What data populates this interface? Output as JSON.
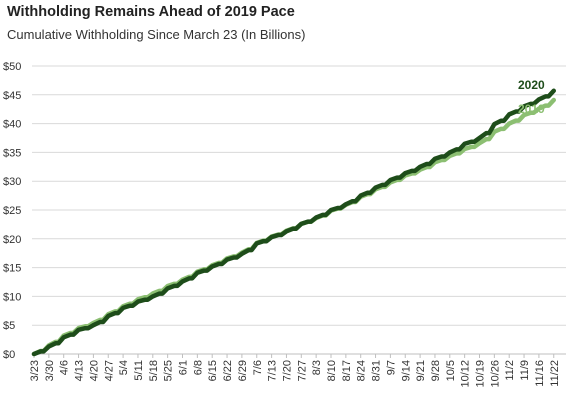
{
  "title": "Withholding Remains Ahead of 2019 Pace",
  "subtitle": "Cumulative Withholding Since March 23 (In Billions)",
  "chart_data": {
    "type": "line",
    "title": "Withholding Remains Ahead of 2019 Pace",
    "subtitle": "Cumulative Withholding Since March 23 (In Billions)",
    "xlabel": "",
    "ylabel": "",
    "ylim": [
      0,
      50
    ],
    "y_ticks": [
      "$0",
      "$5",
      "$10",
      "$15",
      "$20",
      "$25",
      "$30",
      "$35",
      "$40",
      "$45",
      "$50"
    ],
    "grid": true,
    "legend": "direct labels at right end of lines",
    "categories": [
      "3/23",
      "3/30",
      "4/6",
      "4/13",
      "4/20",
      "4/27",
      "5/4",
      "5/11",
      "5/18",
      "5/25",
      "6/1",
      "6/8",
      "6/15",
      "6/22",
      "6/29",
      "7/6",
      "7/13",
      "7/20",
      "7/27",
      "8/3",
      "8/10",
      "8/17",
      "8/24",
      "8/31",
      "9/7",
      "9/14",
      "9/21",
      "9/28",
      "10/5",
      "10/12",
      "10/19",
      "10/26",
      "11/2",
      "11/9",
      "11/16",
      "11/22"
    ],
    "series": [
      {
        "name": "2020",
        "color": "#1e4d1a",
        "values": [
          0,
          1.3,
          2.9,
          4.2,
          5.0,
          6.6,
          8.0,
          9.1,
          10.0,
          11.4,
          12.6,
          14.1,
          15.2,
          16.4,
          17.4,
          19.2,
          20.3,
          21.3,
          22.6,
          23.7,
          25.0,
          26.0,
          27.5,
          28.9,
          30.2,
          31.4,
          32.5,
          33.9,
          35.0,
          36.5,
          37.5,
          39.9,
          41.6,
          43.0,
          44.2,
          45.7
        ]
      },
      {
        "name": "2019",
        "color": "#8cbf72",
        "values": [
          0,
          1.5,
          3.2,
          4.5,
          5.4,
          6.9,
          8.3,
          9.5,
          10.5,
          11.8,
          12.9,
          14.3,
          15.4,
          16.6,
          17.6,
          19.3,
          20.4,
          21.4,
          22.6,
          23.6,
          24.9,
          25.9,
          27.3,
          28.6,
          29.8,
          31.0,
          32.0,
          33.3,
          34.4,
          35.6,
          36.6,
          38.6,
          40.0,
          41.5,
          42.6,
          44.1
        ]
      }
    ]
  }
}
